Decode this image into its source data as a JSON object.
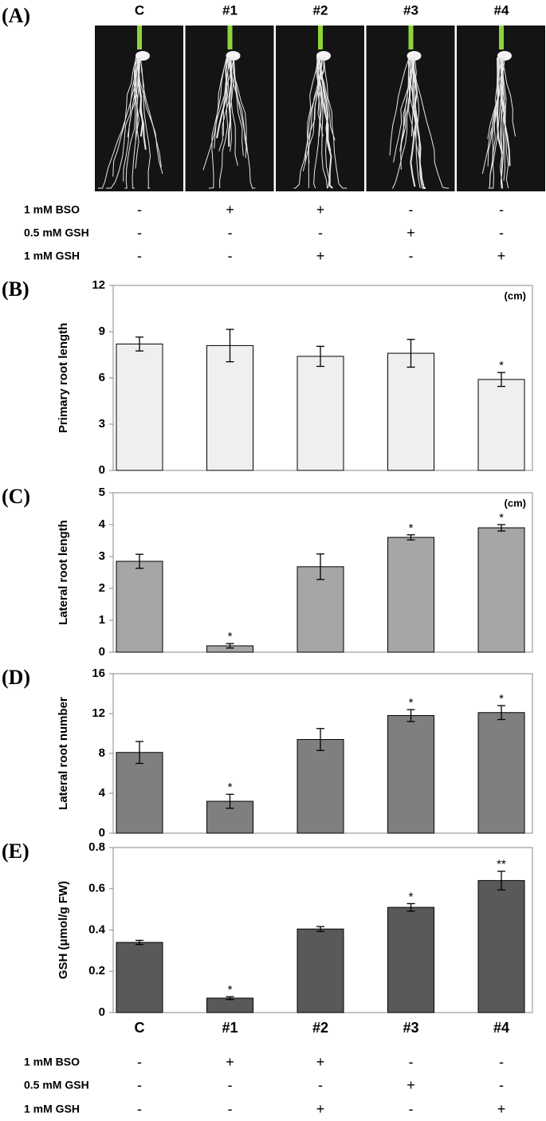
{
  "panel_a": {
    "label": "(A)",
    "columns": [
      "C",
      "#1",
      "#2",
      "#3",
      "#4"
    ],
    "rows": [
      {
        "name": "1 mM BSO",
        "marks": [
          "-",
          "+",
          "+",
          "-",
          "-"
        ]
      },
      {
        "name": "0.5 mM GSH",
        "marks": [
          "-",
          "-",
          "-",
          "+",
          "-"
        ]
      },
      {
        "name": "1 mM GSH",
        "marks": [
          "-",
          "-",
          "+",
          "-",
          "+"
        ]
      }
    ]
  },
  "chart_data": [
    {
      "type": "bar",
      "panel": "(B)",
      "y_label": "Primary root length",
      "unit": "(cm)",
      "color": "#efefef",
      "values": [
        8.2,
        8.1,
        7.4,
        7.6,
        5.9
      ],
      "errors": [
        0.45,
        1.05,
        0.65,
        0.9,
        0.45
      ],
      "annotations": [
        null,
        null,
        null,
        null,
        "*"
      ],
      "ylim": [
        0,
        12
      ],
      "yticks": [
        0,
        3,
        6,
        9,
        12
      ]
    },
    {
      "type": "bar",
      "panel": "(C)",
      "y_label": "Lateral root length",
      "unit": "(cm)",
      "color": "#a6a6a6",
      "values": [
        2.85,
        0.2,
        2.68,
        3.6,
        3.9
      ],
      "errors": [
        0.22,
        0.07,
        0.4,
        0.08,
        0.1
      ],
      "annotations": [
        null,
        "*",
        null,
        "*",
        "*"
      ],
      "ylim": [
        0,
        5
      ],
      "yticks": [
        0,
        1,
        2,
        3,
        4,
        5
      ]
    },
    {
      "type": "bar",
      "panel": "(D)",
      "y_label": "Lateral root number",
      "color": "#7f7f7f",
      "values": [
        8.1,
        3.2,
        9.4,
        11.8,
        12.1
      ],
      "errors": [
        1.1,
        0.7,
        1.1,
        0.6,
        0.7
      ],
      "annotations": [
        null,
        "*",
        null,
        "*",
        "*"
      ],
      "ylim": [
        0,
        16
      ],
      "yticks": [
        0,
        4,
        8,
        12,
        16
      ]
    },
    {
      "type": "bar",
      "panel": "(E)",
      "y_label": "GSH (μmol/g FW)",
      "color": "#595959",
      "categories": [
        "C",
        "#1",
        "#2",
        "#3",
        "#4"
      ],
      "values": [
        0.34,
        0.07,
        0.405,
        0.51,
        0.64
      ],
      "errors": [
        0.01,
        0.007,
        0.012,
        0.018,
        0.045
      ],
      "annotations": [
        null,
        "*",
        null,
        "*",
        "**"
      ],
      "ylim": [
        0,
        0.8
      ],
      "yticks": [
        0,
        0.2,
        0.4,
        0.6,
        0.8
      ]
    }
  ],
  "bottom_table": {
    "rows": [
      {
        "name": "1 mM BSO",
        "marks": [
          "-",
          "+",
          "+",
          "-",
          "-"
        ]
      },
      {
        "name": "0.5 mM GSH",
        "marks": [
          "-",
          "-",
          "-",
          "+",
          "-"
        ]
      },
      {
        "name": "1 mM GSH",
        "marks": [
          "-",
          "-",
          "+",
          "-",
          "+"
        ]
      }
    ]
  }
}
